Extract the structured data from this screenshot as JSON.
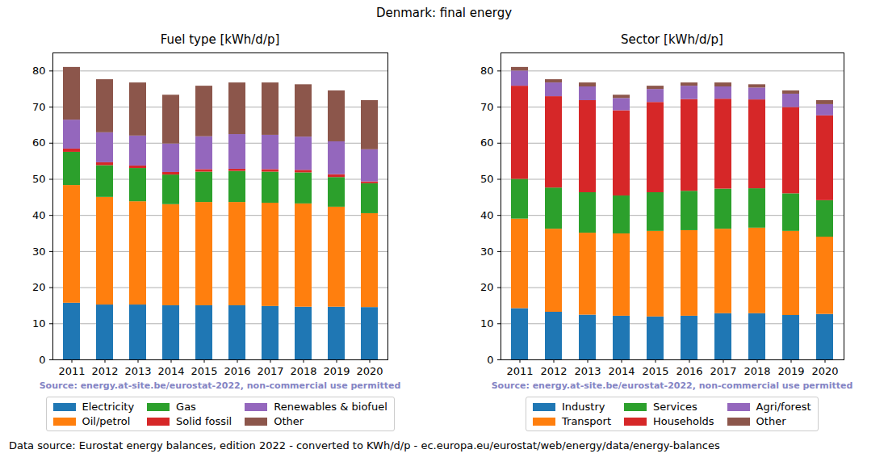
{
  "title": "Denmark: final energy",
  "caption": "Data source: Eurostat energy balances, edition 2022 - converted to KWh/d/p - ec.europa.eu/eurostat/web/energy/data/energy-balances",
  "chart_data": [
    {
      "type": "bar",
      "stacked": true,
      "title": "Fuel type [kWh/d/p]",
      "annotations": [
        "Source: energy.at-site.be/eurostat-2022, non-commercial use permitted"
      ],
      "categories": [
        "2011",
        "2012",
        "2013",
        "2014",
        "2015",
        "2016",
        "2017",
        "2018",
        "2019",
        "2020"
      ],
      "series": [
        {
          "name": "Electricity",
          "color": "#1f77b4",
          "values": [
            15.7,
            15.2,
            15.2,
            15.0,
            15.0,
            15.0,
            14.8,
            14.6,
            14.6,
            14.5
          ]
        },
        {
          "name": "Oil/petrol",
          "color": "#ff7f0e",
          "values": [
            32.6,
            29.8,
            28.6,
            28.0,
            28.6,
            28.6,
            28.6,
            28.6,
            27.7,
            26.0
          ]
        },
        {
          "name": "Gas",
          "color": "#2ca02c",
          "values": [
            9.2,
            8.8,
            9.2,
            8.2,
            8.4,
            8.6,
            8.6,
            8.6,
            8.2,
            8.3
          ]
        },
        {
          "name": "Solid fossil",
          "color": "#d62728",
          "values": [
            0.9,
            0.8,
            0.7,
            0.7,
            0.7,
            0.6,
            0.7,
            0.7,
            0.8,
            0.5
          ]
        },
        {
          "name": "Renewables & biofuel",
          "color": "#9467bd",
          "values": [
            8.0,
            8.3,
            8.3,
            7.9,
            9.1,
            9.6,
            9.5,
            9.2,
            9.1,
            8.9
          ]
        },
        {
          "name": "Other",
          "color": "#8c564b",
          "values": [
            14.6,
            14.7,
            14.7,
            13.5,
            14.0,
            14.3,
            14.5,
            14.5,
            14.1,
            13.6
          ]
        }
      ],
      "ylim": [
        0,
        85
      ],
      "yticks": [
        0,
        10,
        20,
        30,
        40,
        50,
        60,
        70,
        80
      ],
      "grid": true,
      "legend": "bottom"
    },
    {
      "type": "bar",
      "stacked": true,
      "title": "Sector [kWh/d/p]",
      "annotations": [
        "Source: energy.at-site.be/eurostat-2022, non-commercial use permitted"
      ],
      "categories": [
        "2011",
        "2012",
        "2013",
        "2014",
        "2015",
        "2016",
        "2017",
        "2018",
        "2019",
        "2020"
      ],
      "series": [
        {
          "name": "Industry",
          "color": "#1f77b4",
          "values": [
            14.2,
            13.2,
            12.4,
            12.1,
            11.9,
            12.1,
            12.8,
            12.8,
            12.3,
            12.6
          ]
        },
        {
          "name": "Transport",
          "color": "#ff7f0e",
          "values": [
            24.8,
            23.0,
            22.7,
            22.8,
            23.7,
            23.7,
            23.4,
            23.7,
            23.3,
            21.4
          ]
        },
        {
          "name": "Services",
          "color": "#2ca02c",
          "values": [
            11.0,
            11.4,
            11.2,
            10.5,
            10.7,
            10.9,
            11.1,
            10.9,
            10.4,
            10.1
          ]
        },
        {
          "name": "Households",
          "color": "#d62728",
          "values": [
            25.8,
            25.3,
            25.5,
            23.6,
            25.0,
            25.4,
            24.9,
            24.6,
            23.9,
            23.5
          ]
        },
        {
          "name": "Agri/forest",
          "color": "#9467bd",
          "values": [
            4.2,
            3.8,
            3.8,
            3.4,
            3.6,
            3.7,
            3.4,
            3.3,
            3.7,
            3.1
          ]
        },
        {
          "name": "Other",
          "color": "#8c564b",
          "values": [
            1.0,
            0.9,
            1.1,
            0.9,
            0.9,
            0.9,
            1.1,
            0.9,
            0.9,
            1.1
          ]
        }
      ],
      "ylim": [
        0,
        85
      ],
      "yticks": [
        0,
        10,
        20,
        30,
        40,
        50,
        60,
        70,
        80
      ],
      "grid": true,
      "legend": "bottom"
    }
  ]
}
